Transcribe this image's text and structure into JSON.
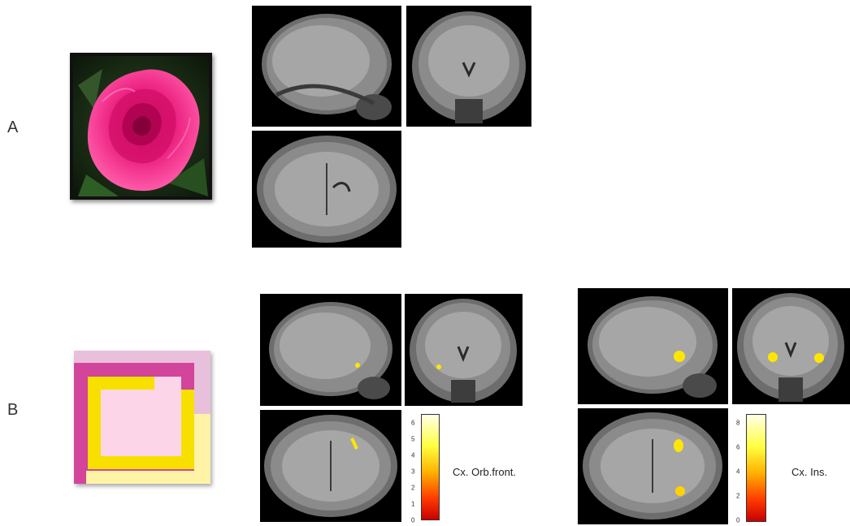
{
  "row_a": {
    "label": "A"
  },
  "row_b": {
    "label": "B",
    "panel_1": {
      "region_label": "Cx. Orb.front.",
      "colorbar": {
        "min": 0,
        "max": 6,
        "ticks": [
          "6",
          "5",
          "4",
          "3",
          "2",
          "1",
          "0"
        ]
      }
    },
    "panel_2": {
      "region_label": "Cx. Ins.",
      "colorbar": {
        "min": 0,
        "max": 8,
        "ticks": [
          "8",
          "6",
          "4",
          "2",
          "0"
        ]
      }
    }
  },
  "colors": {
    "rose": "#e8187a",
    "abstract_pink_light": "#e8c0dc",
    "abstract_magenta": "#d2459a",
    "abstract_yellow": "#f7e000",
    "abstract_pale_yellow": "#fff3a6",
    "abstract_pale_pink": "#fcd6e8",
    "activation": "#ffe600"
  }
}
